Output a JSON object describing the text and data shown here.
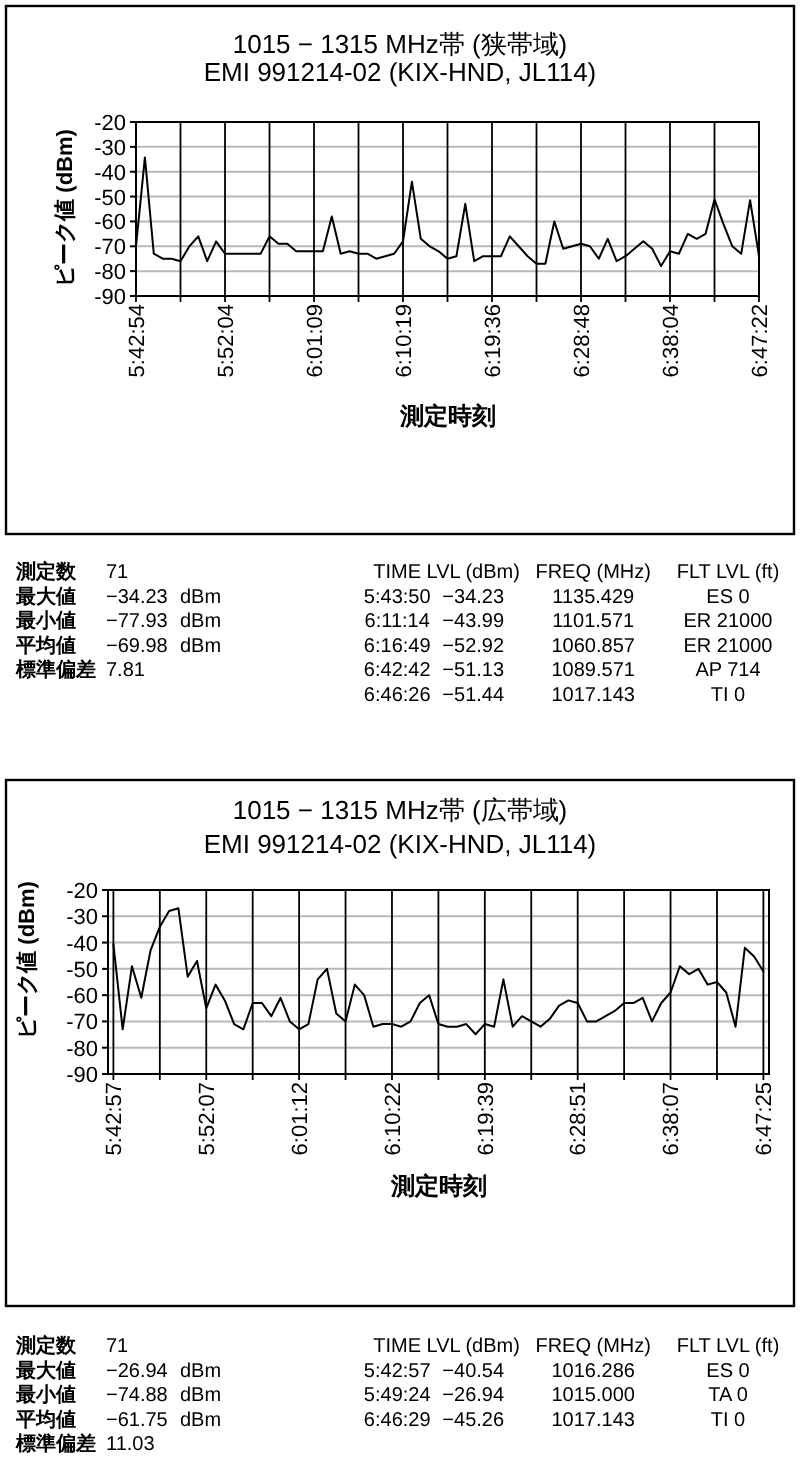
{
  "chart_data": [
    {
      "type": "line",
      "title": "1015 − 1315 MHz帯 (狭帯域)",
      "subtitle": "EMI 991214-02 (KIX-HND, JL114)",
      "xlabel": "測定時刻",
      "ylabel": "ピーク値 (dBm)",
      "categories": [
        "5:42:54",
        null,
        null,
        null,
        null,
        null,
        null,
        null,
        null,
        null,
        "5:52:04",
        null,
        null,
        null,
        null,
        null,
        null,
        null,
        null,
        null,
        "6:01:09",
        null,
        null,
        null,
        null,
        null,
        null,
        null,
        null,
        null,
        "6:10:19",
        null,
        null,
        null,
        null,
        null,
        null,
        null,
        null,
        null,
        "6:19:36",
        null,
        null,
        null,
        null,
        null,
        null,
        null,
        null,
        null,
        "6:28:48",
        null,
        null,
        null,
        null,
        null,
        null,
        null,
        null,
        null,
        "6:38:04",
        null,
        null,
        null,
        null,
        null,
        null,
        null,
        null,
        null,
        "6:47:22"
      ],
      "series": [
        {
          "color": "#000000",
          "values": [
            -70,
            -34.23,
            -73,
            -75,
            -75,
            -76,
            -70,
            -66,
            -76,
            -68,
            -73,
            -73,
            -73,
            -73,
            -73,
            -66,
            -69,
            -69,
            -72,
            -72,
            -72,
            -72,
            -58,
            -73,
            -72,
            -73,
            -73,
            -75,
            -74,
            -73,
            -68,
            -43.99,
            -67,
            -70,
            -72,
            -75,
            -74,
            -52.92,
            -76,
            -74,
            -74,
            -74,
            -66,
            -70,
            -74,
            -77,
            -77,
            -60,
            -71,
            -70,
            -69,
            -70,
            -75,
            -67,
            -76,
            -74,
            -71,
            -68,
            -71,
            -77.93,
            -72,
            -73,
            -65,
            -67,
            -65,
            -51.13,
            -61,
            -70,
            -73,
            -51.44,
            -74
          ]
        }
      ],
      "ylim": [
        -90,
        -20
      ],
      "yticks": [
        -90,
        -80,
        -70,
        -60,
        -50,
        -40,
        -30,
        -20
      ],
      "grid": true,
      "annotations": [
        "測定数  71",
        "最大値  −34.23  dBm",
        "最小値  −77.93  dBm",
        "平均値  −69.98  dBm",
        "標準偏差  7.81",
        "TIME  LVL (dBm)  FREQ (MHz)  FLT LVL (ft)",
        "5:43:50  −34.23  1135.429  ES 0",
        "6:11:14  −43.99  1101.571  ER 21000",
        "6:16:49  −52.92  1060.857  ER 21000",
        "6:42:42  −51.13  1089.571  AP 714",
        "6:46:26  −51.44  1017.143  TI 0"
      ]
    },
    {
      "type": "line",
      "title": "1015 − 1315 MHz帯 (広帯域)",
      "subtitle": "EMI 991214-02 (KIX-HND, JL114)",
      "xlabel": "測定時刻",
      "ylabel": "ピーク値 (dBm)",
      "categories": [
        "5:42:57",
        null,
        null,
        null,
        null,
        null,
        null,
        null,
        null,
        null,
        "5:52:07",
        null,
        null,
        null,
        null,
        null,
        null,
        null,
        null,
        null,
        "6:01:12",
        null,
        null,
        null,
        null,
        null,
        null,
        null,
        null,
        null,
        "6:10:22",
        null,
        null,
        null,
        null,
        null,
        null,
        null,
        null,
        null,
        "6:19:39",
        null,
        null,
        null,
        null,
        null,
        null,
        null,
        null,
        null,
        "6:28:51",
        null,
        null,
        null,
        null,
        null,
        null,
        null,
        null,
        null,
        "6:38:07",
        null,
        null,
        null,
        null,
        null,
        null,
        null,
        null,
        null,
        "6:47:25"
      ],
      "series": [
        {
          "color": "#000000",
          "values": [
            -40.54,
            -73,
            -49,
            -61,
            -43,
            -34,
            -28,
            -26.94,
            -53,
            -47,
            -65,
            -56,
            -62,
            -71,
            -73,
            -63,
            -63,
            -68,
            -61,
            -70,
            -73,
            -71,
            -54,
            -50,
            -67,
            -70,
            -56,
            -60,
            -72,
            -71,
            -71,
            -72,
            -70,
            -63,
            -60,
            -71,
            -72,
            -72,
            -71,
            -74.88,
            -71,
            -72,
            -54,
            -72,
            -68,
            -70,
            -72,
            -69,
            -64,
            -62,
            -63,
            -70,
            -70,
            -68,
            -66,
            -63,
            -63,
            -61,
            -70,
            -63,
            -59,
            -49,
            -52,
            -50,
            -56,
            -55,
            -59,
            -72,
            -42,
            -45.26,
            -51
          ]
        }
      ],
      "ylim": [
        -90,
        -20
      ],
      "yticks": [
        -90,
        -80,
        -70,
        -60,
        -50,
        -40,
        -30,
        -20
      ],
      "grid": true,
      "annotations": [
        "測定数  71",
        "最大値  −26.94  dBm",
        "最小値  −74.88  dBm",
        "平均値  −61.75  dBm",
        "標準偏差  11.03",
        "TIME  LVL (dBm)  FREQ (MHz)  FLT LVL (ft)",
        "5:42:57  −40.54  1016.286  ES 0",
        "5:49:24  −26.94  1015.000  TA 0",
        "6:46:29  −45.26  1017.143  TI 0"
      ]
    }
  ]
}
